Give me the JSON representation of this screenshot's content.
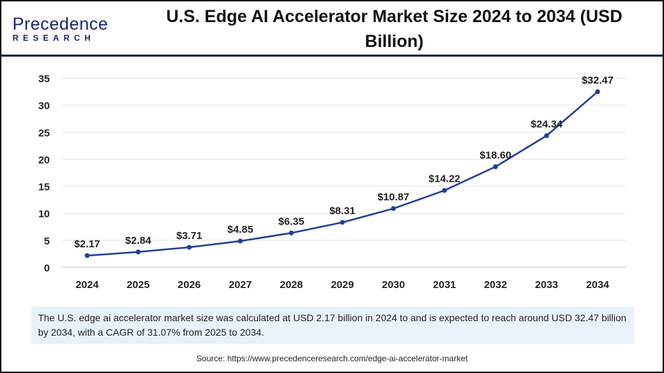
{
  "logo": {
    "line1": "Precedence",
    "line2": "RESEARCH"
  },
  "title": "U.S. Edge AI Accelerator Market Size 2024 to 2034 (USD Billion)",
  "summary": "The U.S. edge ai accelerator market size was calculated at USD 2.17 billion in 2024 to and is expected to reach around USD 32.47 billion by 2034, with a CAGR of 31.07% from 2025 to 2034.",
  "source": "Source: https://www.precedenceresearch.com/edge-ai-accelerator-market",
  "chart_data": {
    "type": "line",
    "title": "U.S. Edge AI Accelerator Market Size 2024 to 2034 (USD Billion)",
    "categories": [
      "2024",
      "2025",
      "2026",
      "2027",
      "2028",
      "2029",
      "2030",
      "2031",
      "2032",
      "2033",
      "2034"
    ],
    "values": [
      2.17,
      2.84,
      3.71,
      4.85,
      6.35,
      8.31,
      10.87,
      14.22,
      18.6,
      24.34,
      32.47
    ],
    "data_labels": [
      "$2.17",
      "$2.84",
      "$3.71",
      "$4.85",
      "$6.35",
      "$8.31",
      "$10.87",
      "$14.22",
      "$18.60",
      "$24.34",
      "$32.47"
    ],
    "yticks": [
      0,
      5,
      10,
      15,
      20,
      25,
      30,
      35
    ],
    "ylim": [
      0,
      35
    ],
    "grid": true,
    "line_color": "#1f3f99"
  }
}
